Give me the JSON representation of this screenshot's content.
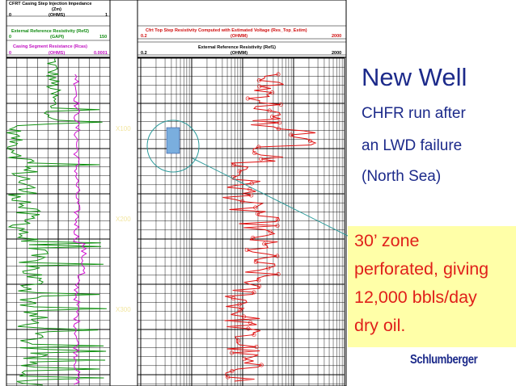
{
  "track1_header": {
    "title_line1": "CFRT Casing Step Injection Impedance",
    "title_line2": "(Zm)",
    "scale_left": "0",
    "scale_unit": "(OHMS)",
    "scale_right": "1",
    "ref_title": "External Reference Resistivity (Ref2)",
    "ref_left": "0",
    "ref_unit": "(GAPI)",
    "ref_right": "150",
    "casing_title": "Casing Segment Resistance (Rcas)",
    "casing_left": "0",
    "casing_unit": "(OHMS)",
    "casing_right": "0.0001"
  },
  "track2_header": {
    "title": "Cfrt Top Step Resistivity Computed with Estimated Voltage (Res_Top_Estim)",
    "left": "0.2",
    "unit": "(OHMM)",
    "right": "2000",
    "ref_title": "External Reference Resistivity (Ref1)",
    "ref_left": "0.2",
    "ref_unit": "(OHMM)",
    "ref_right": "2000"
  },
  "depth_labels": [
    "X100",
    "X200",
    "X300"
  ],
  "slide": {
    "title": "New Well",
    "line1": "CHFR run after",
    "line2": "an LWD failure",
    "line3": "(North Sea)"
  },
  "callout": {
    "line1": "30’ zone",
    "line2": "perforated, giving",
    "line3": "12,000 bbls/day",
    "line4": "dry oil."
  },
  "logo": "Schlumberger",
  "colors": {
    "title_blue": "#1c2a8a",
    "callout_bg": "#ffffa8",
    "callout_text": "#e0201a",
    "curve_green": "#109010",
    "curve_red": "#e01010",
    "curve_magenta": "#d010d0",
    "arrow_teal": "#2a9a9a"
  }
}
